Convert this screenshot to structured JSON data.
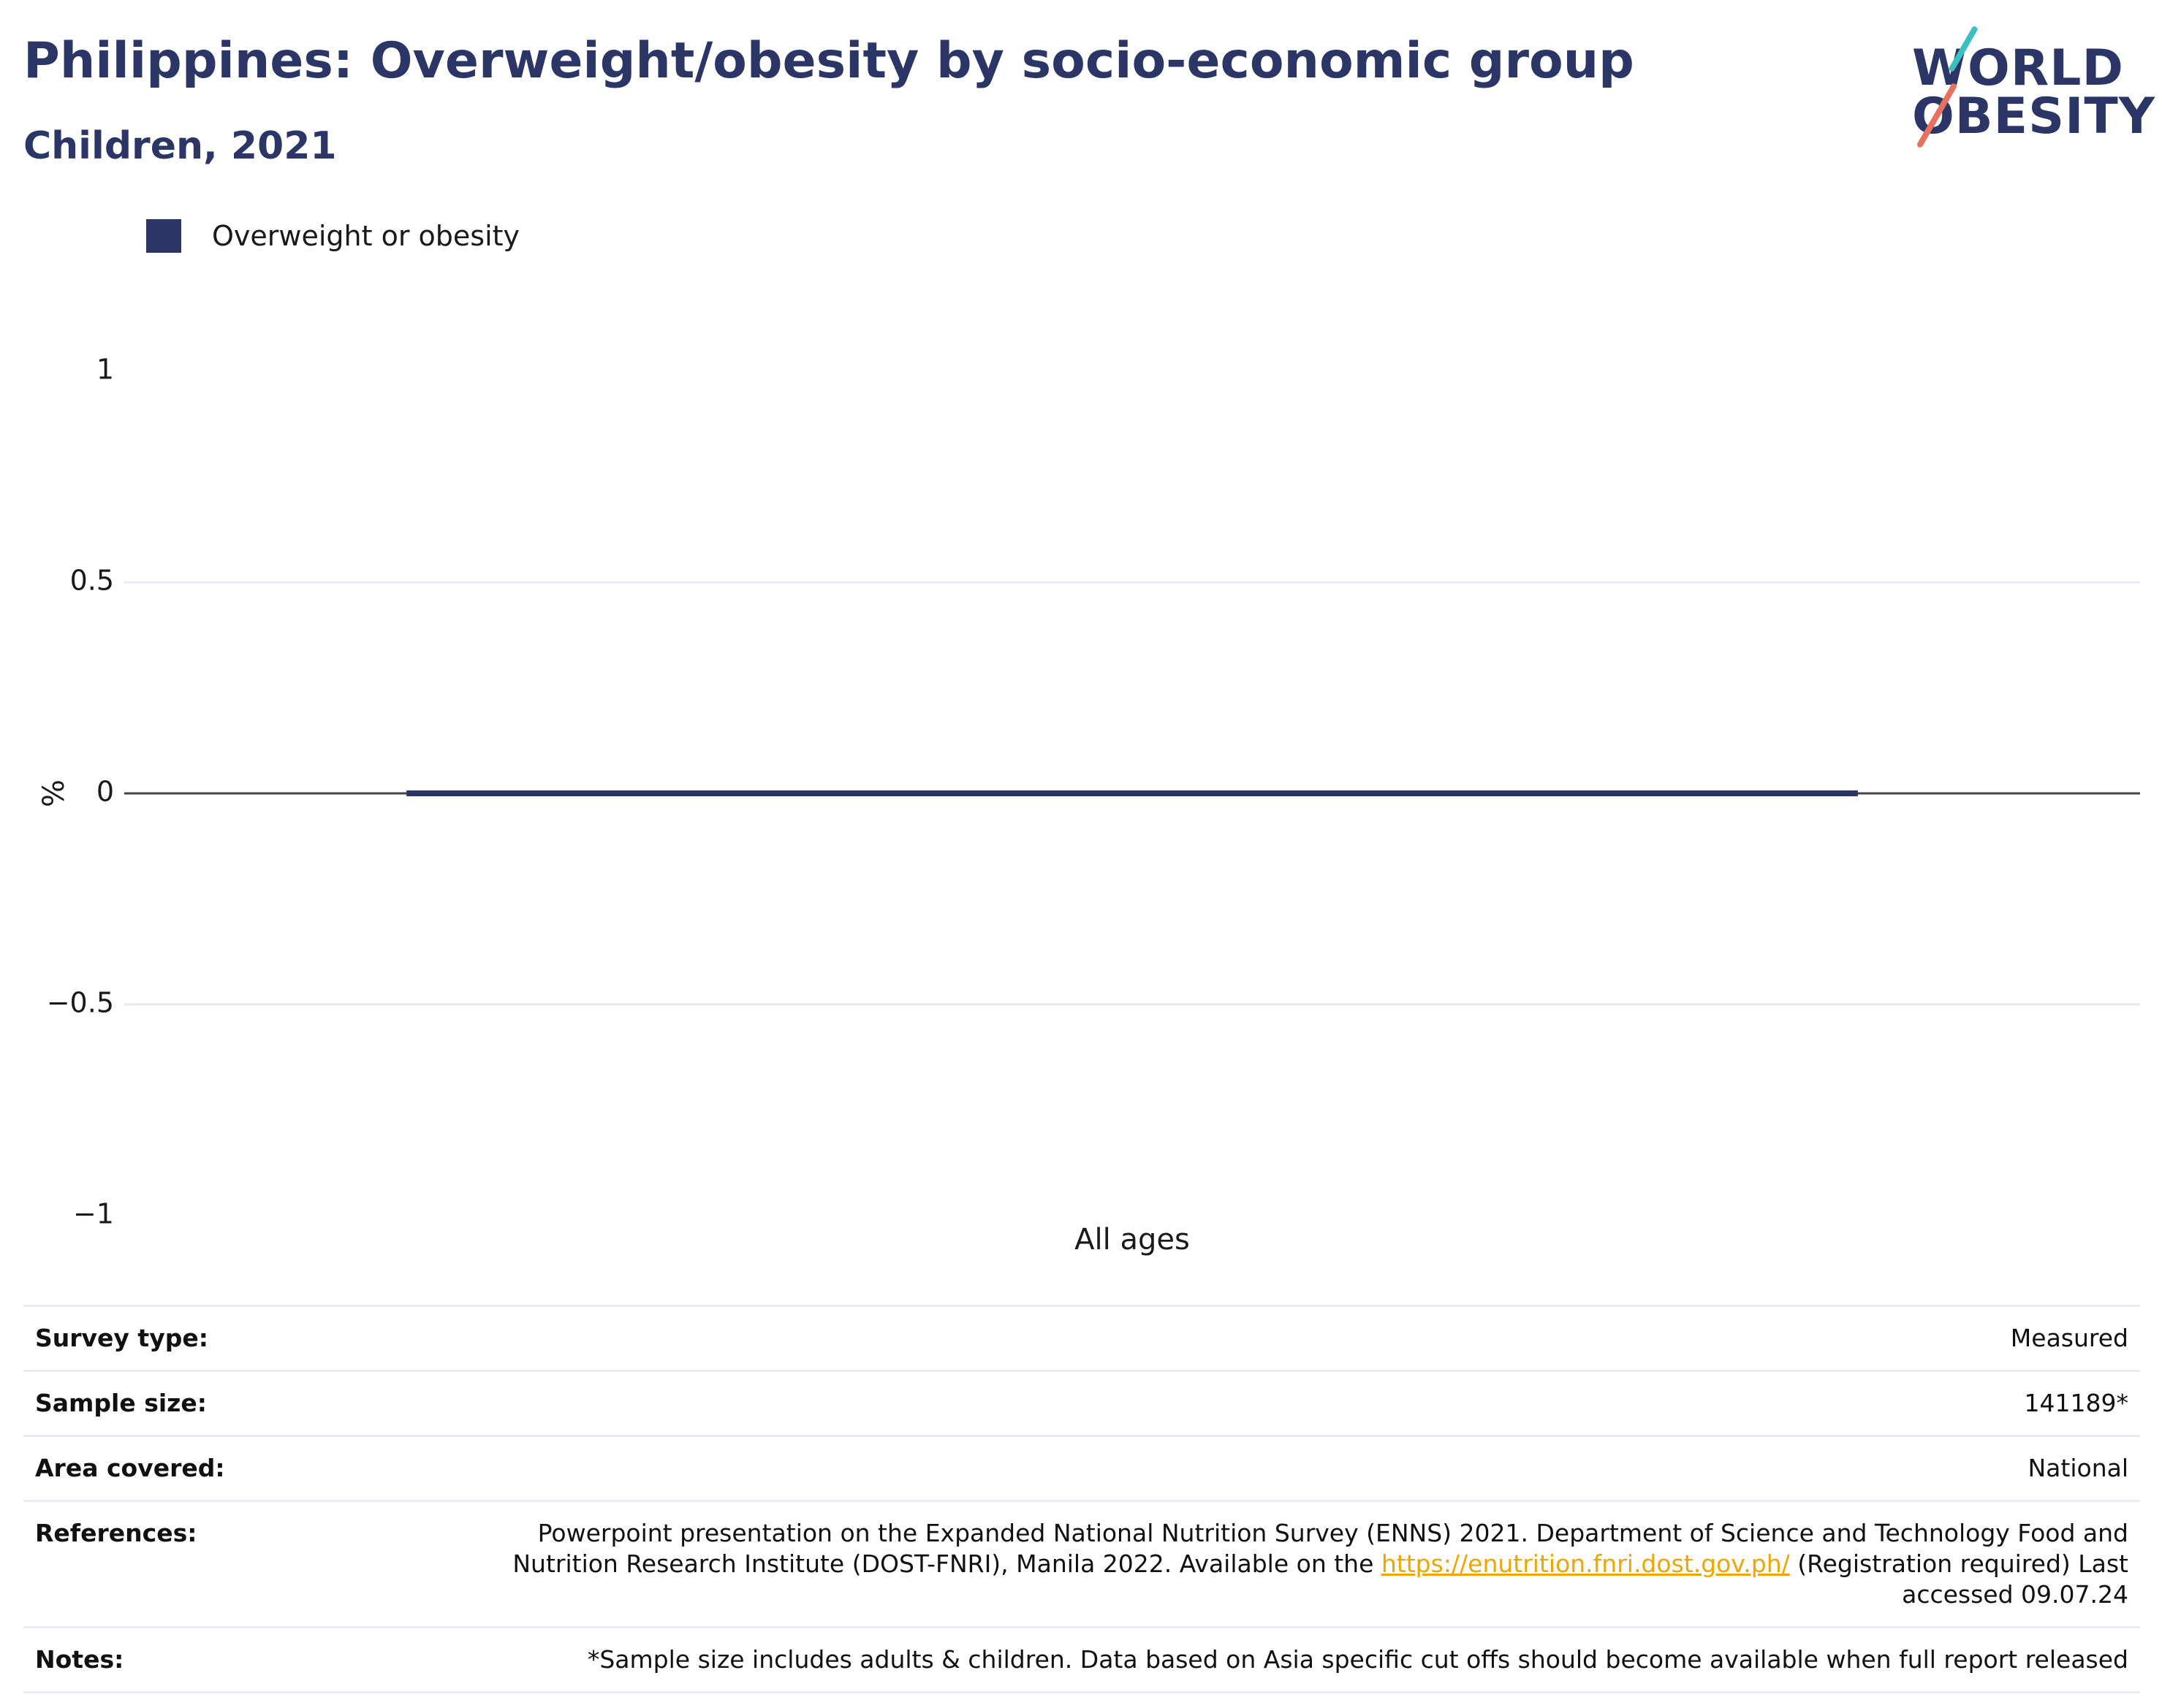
{
  "header": {
    "title": "Philippines: Overweight/obesity by socio-economic group",
    "subtitle": "Children, 2021"
  },
  "logo": {
    "line1": "WORLD",
    "line2": "OBESITY",
    "colors": {
      "text": "#2b3566",
      "slash_top": "#3bbfbf",
      "slash_bottom": "#e8705f"
    }
  },
  "colors": {
    "series": "#2b3566",
    "grid": "#e8ebf5",
    "zero_line": "#444444",
    "link": "#f0a500"
  },
  "chart_data": {
    "type": "bar",
    "categories": [
      "All ages"
    ],
    "series": [
      {
        "name": "Overweight or obesity",
        "values": [
          0
        ],
        "color": "#2b3566"
      }
    ],
    "ylabel": "%",
    "xlabel": "",
    "ylim": [
      -1,
      1
    ],
    "yticks": [
      1,
      0.5,
      0,
      -0.5,
      -1
    ],
    "ytick_labels": [
      "1",
      "0.5",
      "0",
      "−0.5",
      "−1"
    ],
    "grid": true,
    "legend_position": "top-left"
  },
  "info": {
    "rows": [
      {
        "key": "Survey type:",
        "value": "Measured"
      },
      {
        "key": "Sample size:",
        "value": "141189*"
      },
      {
        "key": "Area covered:",
        "value": "National"
      }
    ],
    "references": {
      "key": "References:",
      "text_before": "Powerpoint presentation on the Expanded National Nutrition Survey (ENNS) 2021. Department of Science and Technology Food and Nutrition Research Institute (DOST-FNRI), Manila 2022. Available on the ",
      "link_text": "https://enutrition.fnri.dost.gov.ph/",
      "text_after": " (Registration required) Last accessed 09.07.24"
    },
    "notes": {
      "key": "Notes:",
      "value": "*Sample size includes adults & children. Data based on Asia specific cut offs should become available when full report released"
    }
  }
}
